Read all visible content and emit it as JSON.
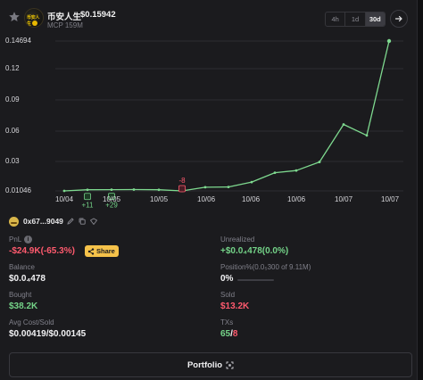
{
  "token": {
    "name": "币安人生",
    "price": "$0.15942",
    "mcp": "MCP  159M",
    "avatar_text": "币安人生"
  },
  "timeframes": [
    "4h",
    "1d",
    "30d"
  ],
  "active_timeframe": "30d",
  "chart_data": {
    "type": "line",
    "y_ticks": [
      "0.14694",
      "0.12",
      "0.09",
      "0.06",
      "0.03",
      "0.01046"
    ],
    "x_ticks": [
      "10/04",
      "10/05",
      "10/05",
      "10/06",
      "10/06",
      "10/06",
      "10/07",
      "10/07"
    ],
    "ylim": [
      0.01046,
      0.14694
    ],
    "series": [
      {
        "values": [
          0.01046,
          0.0115,
          0.0116,
          0.0117,
          0.0115,
          0.01046,
          0.0138,
          0.014,
          0.0185,
          0.027,
          0.029,
          0.0368,
          0.071,
          0.061,
          0.14694
        ]
      }
    ],
    "color": "#7ed98f",
    "markers": [
      {
        "label": "+11",
        "kind": "buy",
        "point": 1
      },
      {
        "label": "+29",
        "kind": "buy",
        "point": 2
      },
      {
        "label": "-8",
        "kind": "sell",
        "point": 5
      }
    ]
  },
  "wallet": {
    "address": "0x67...9049"
  },
  "stats": {
    "pnl_label": "PnL",
    "pnl_value": "-$24.9K(-65.3%)",
    "share_label": "Share",
    "unrealized_label": "Unrealized",
    "unrealized_value": "+$0.0₄478(0.0%)",
    "balance_label": "Balance",
    "balance_value": "$0.0₄478",
    "position_label": "Position%(0.0₅300 of 9.11M)",
    "position_value": "0%",
    "position_fraction": 0,
    "bought_label": "Bought",
    "bought_value": "$38.2K",
    "sold_label": "Sold",
    "sold_value": "$13.2K",
    "avg_label": "Avg Cost/Sold",
    "avg_value": "$0.00419/$0.00145",
    "txs_label": "TXs",
    "txs_buys": "65",
    "txs_sep": "/",
    "txs_sells": "8"
  },
  "portfolio_label": "Portfolio",
  "colors": {
    "accent_green": "#74d388",
    "accent_red": "#ff5a6e",
    "share_bg": "#f5c24a"
  }
}
